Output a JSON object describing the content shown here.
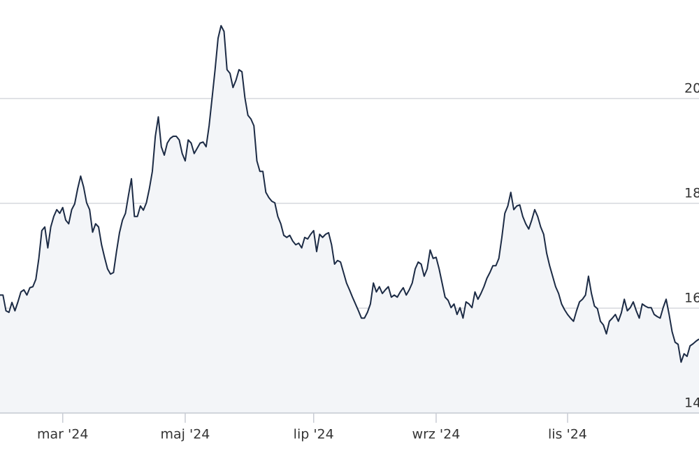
{
  "chart_data": {
    "type": "area",
    "series": [
      {
        "color": "#1c2b45",
        "fill": "#f3f5f8",
        "values": [
          16.25,
          16.25,
          15.95,
          15.92,
          16.11,
          15.95,
          16.12,
          16.31,
          16.35,
          16.25,
          16.39,
          16.41,
          16.55,
          16.95,
          17.48,
          17.55,
          17.15,
          17.55,
          17.75,
          17.88,
          17.81,
          17.92,
          17.68,
          17.61,
          17.88,
          17.99,
          18.28,
          18.52,
          18.31,
          18.01,
          17.88,
          17.45,
          17.61,
          17.55,
          17.21,
          16.97,
          16.75,
          16.65,
          16.68,
          17.08,
          17.44,
          17.68,
          17.81,
          18.15,
          18.47,
          17.75,
          17.75,
          17.95,
          17.87,
          18.01,
          18.28,
          18.61,
          19.28,
          19.65,
          19.08,
          18.92,
          19.15,
          19.24,
          19.28,
          19.28,
          19.21,
          18.95,
          18.81,
          19.21,
          19.15,
          18.95,
          19.05,
          19.15,
          19.17,
          19.08,
          19.48,
          20.01,
          20.55,
          21.15,
          21.39,
          21.28,
          20.55,
          20.48,
          20.21,
          20.35,
          20.55,
          20.51,
          20.01,
          19.68,
          19.61,
          19.48,
          18.81,
          18.61,
          18.61,
          18.21,
          18.11,
          18.04,
          18.01,
          17.75,
          17.61,
          17.39,
          17.35,
          17.39,
          17.28,
          17.21,
          17.24,
          17.15,
          17.35,
          17.32,
          17.41,
          17.48,
          17.08,
          17.41,
          17.35,
          17.41,
          17.44,
          17.21,
          16.84,
          16.91,
          16.88,
          16.68,
          16.48,
          16.35,
          16.21,
          16.08,
          15.95,
          15.81,
          15.81,
          15.92,
          16.08,
          16.48,
          16.31,
          16.41,
          16.28,
          16.35,
          16.41,
          16.21,
          16.25,
          16.21,
          16.31,
          16.39,
          16.25,
          16.35,
          16.48,
          16.75,
          16.88,
          16.84,
          16.61,
          16.75,
          17.11,
          16.95,
          16.97,
          16.75,
          16.48,
          16.21,
          16.15,
          16.01,
          16.08,
          15.88,
          16.01,
          15.81,
          16.12,
          16.08,
          16.01,
          16.31,
          16.17,
          16.28,
          16.41,
          16.57,
          16.68,
          16.81,
          16.81,
          16.95,
          17.35,
          17.81,
          17.95,
          18.21,
          17.88,
          17.95,
          17.97,
          17.75,
          17.61,
          17.51,
          17.68,
          17.88,
          17.75,
          17.55,
          17.41,
          17.05,
          16.81,
          16.61,
          16.41,
          16.28,
          16.08,
          15.97,
          15.88,
          15.81,
          15.75,
          15.95,
          16.12,
          16.17,
          16.25,
          16.61,
          16.28,
          16.04,
          15.99,
          15.75,
          15.68,
          15.51,
          15.75,
          15.81,
          15.88,
          15.75,
          15.91,
          16.17,
          15.95,
          16.01,
          16.12,
          15.95,
          15.81,
          16.08,
          16.04,
          16.01,
          16.01,
          15.88,
          15.84,
          15.81,
          16.01,
          16.17,
          15.88,
          15.55,
          15.35,
          15.31,
          14.97,
          15.13,
          15.08,
          15.28,
          15.32,
          15.37,
          15.41
        ]
      }
    ],
    "xlim": [
      0,
      234
    ],
    "xticks": [
      {
        "value": 21,
        "label": "mar '24"
      },
      {
        "value": 62,
        "label": "maj '24"
      },
      {
        "value": 105,
        "label": "lip '24"
      },
      {
        "value": 146,
        "label": "wrz '24"
      },
      {
        "value": 190,
        "label": "lis '24"
      }
    ],
    "ylim": [
      14,
      21.88
    ],
    "yticks": [
      14,
      16,
      18,
      20
    ],
    "grid": true
  }
}
